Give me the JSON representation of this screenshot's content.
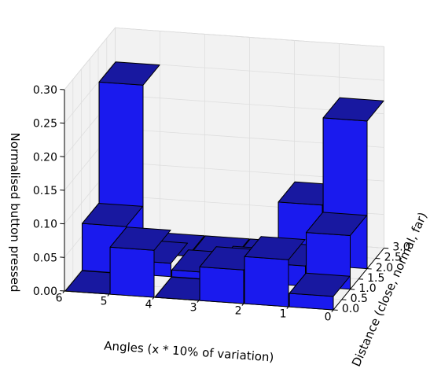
{
  "chart_data": {
    "type": "bar3d",
    "colors": {
      "front": "#1a1aee",
      "top": "#1818a0",
      "side": "#101075"
    },
    "x_axis": {
      "label": "Angles (x * 10% of variation)",
      "ticks": [
        0,
        1,
        2,
        3,
        4,
        5,
        6
      ],
      "lim": [
        0,
        6
      ]
    },
    "y_axis": {
      "label": "Distance (close, normal, far)",
      "ticks": [
        "0.0",
        "0.5",
        "1.0",
        "1.5",
        "2.0",
        "2.5",
        "3.0"
      ],
      "lim": [
        0,
        3
      ]
    },
    "z_axis": {
      "label": "Normalised button pressed",
      "ticks": [
        "0.00",
        "0.05",
        "0.10",
        "0.15",
        "0.20",
        "0.25",
        "0.30"
      ],
      "lim": [
        0,
        0.3
      ]
    },
    "bars": [
      {
        "x": 0,
        "y": 0,
        "z": 0.02
      },
      {
        "x": 1,
        "y": 0,
        "z": 0.07
      },
      {
        "x": 2,
        "y": 0,
        "z": 0.05
      },
      {
        "x": 3,
        "y": 0,
        "z": 0.0
      },
      {
        "x": 4,
        "y": 0,
        "z": 0.07
      },
      {
        "x": 5,
        "y": 0,
        "z": 0.0
      },
      {
        "x": 0,
        "y": 1,
        "z": 0.08
      },
      {
        "x": 1,
        "y": 1,
        "z": 0.03
      },
      {
        "x": 2,
        "y": 1,
        "z": 0.02
      },
      {
        "x": 3,
        "y": 1,
        "z": 0.01
      },
      {
        "x": 4,
        "y": 1,
        "z": 0.02
      },
      {
        "x": 5,
        "y": 1,
        "z": 0.07
      },
      {
        "x": 0,
        "y": 2,
        "z": 0.22
      },
      {
        "x": 1,
        "y": 2,
        "z": 0.09
      },
      {
        "x": 2,
        "y": 2,
        "z": 0.0
      },
      {
        "x": 3,
        "y": 2,
        "z": 0.0
      },
      {
        "x": 4,
        "y": 2,
        "z": 0.0
      },
      {
        "x": 5,
        "y": 2,
        "z": 0.25
      }
    ]
  }
}
